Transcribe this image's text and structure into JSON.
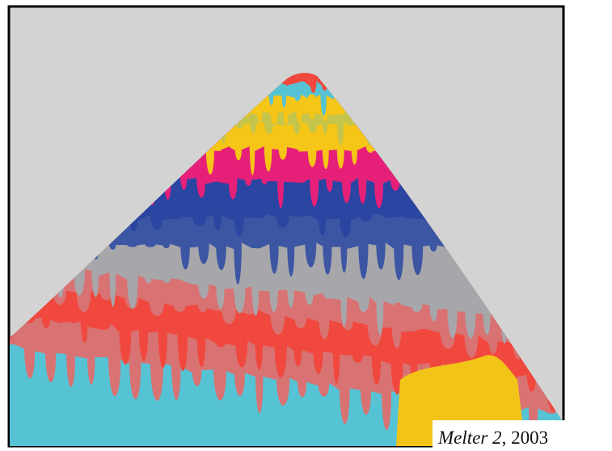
{
  "caption": {
    "title": "Melter 2",
    "rest": ", 2003"
  }
}
